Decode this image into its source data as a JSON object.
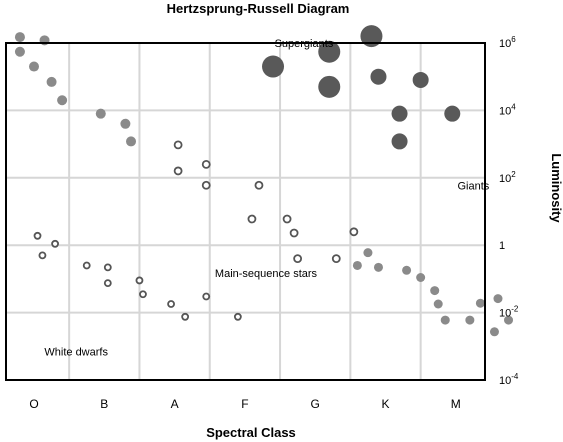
{
  "chart_data": {
    "type": "scatter",
    "title": "Hertzsprung-Russell Diagram",
    "xlabel": "Spectral Class",
    "ylabel": "Luminosity",
    "x_categories": [
      "O",
      "B",
      "A",
      "F",
      "G",
      "K",
      "M"
    ],
    "y_scale": "log",
    "ylim": [
      0.0001,
      1000000
    ],
    "y_ticks": [
      {
        "base": "10",
        "exp": "6",
        "value": 1000000
      },
      {
        "base": "10",
        "exp": "4",
        "value": 10000
      },
      {
        "base": "10",
        "exp": "2",
        "value": 100
      },
      {
        "base": "1",
        "exp": "",
        "value": 1
      },
      {
        "base": "10",
        "exp": "-2",
        "value": 0.01
      },
      {
        "base": "10",
        "exp": "-4",
        "value": 0.0001
      }
    ],
    "grid": true,
    "region_labels": [
      {
        "text": "Supergiants",
        "xpos": 3.84,
        "luminosity": 1000000
      },
      {
        "text": "Giants",
        "xpos": 6.25,
        "luminosity": 60
      },
      {
        "text": "Main-sequence stars",
        "xpos": 3.3,
        "luminosity": 0.15
      },
      {
        "text": "White dwarfs",
        "xpos": 0.6,
        "luminosity": 0.0007
      }
    ],
    "series": [
      {
        "style": "filled",
        "color": "#8a8a8a",
        "points": [
          {
            "x": -0.2,
            "y": 1500000,
            "r": 5
          },
          {
            "x": 0.15,
            "y": 1200000,
            "r": 5
          },
          {
            "x": -0.2,
            "y": 550000,
            "r": 5
          },
          {
            "x": 0.0,
            "y": 200000,
            "r": 5
          },
          {
            "x": 0.25,
            "y": 70000,
            "r": 5
          },
          {
            "x": 0.4,
            "y": 20000,
            "r": 5
          },
          {
            "x": 0.95,
            "y": 8000,
            "r": 5
          },
          {
            "x": 1.3,
            "y": 4000,
            "r": 5
          },
          {
            "x": 1.38,
            "y": 1200,
            "r": 5
          }
        ]
      },
      {
        "style": "filled",
        "color": "#595959",
        "points": [
          {
            "x": 4.8,
            "y": 1600000,
            "r": 11
          },
          {
            "x": 4.2,
            "y": 550000,
            "r": 11
          },
          {
            "x": 3.4,
            "y": 200000,
            "r": 11
          },
          {
            "x": 4.2,
            "y": 50000,
            "r": 11
          },
          {
            "x": 4.9,
            "y": 100000,
            "r": 8
          },
          {
            "x": 5.5,
            "y": 80000,
            "r": 8
          },
          {
            "x": 5.2,
            "y": 8000,
            "r": 8
          },
          {
            "x": 5.95,
            "y": 8000,
            "r": 8
          },
          {
            "x": 5.2,
            "y": 1200,
            "r": 8
          }
        ]
      },
      {
        "style": "ring",
        "color": "#555555",
        "points": [
          {
            "x": 2.05,
            "y": 950,
            "r": 3.5
          },
          {
            "x": 2.05,
            "y": 160,
            "r": 3.5
          },
          {
            "x": 2.45,
            "y": 250,
            "r": 3.5
          },
          {
            "x": 2.45,
            "y": 60,
            "r": 3.5
          },
          {
            "x": 3.2,
            "y": 60,
            "r": 3.5
          },
          {
            "x": 3.1,
            "y": 6,
            "r": 3.5
          },
          {
            "x": 3.6,
            "y": 6,
            "r": 3.5
          },
          {
            "x": 3.7,
            "y": 2.3,
            "r": 3.5
          },
          {
            "x": 4.55,
            "y": 2.5,
            "r": 3.5
          },
          {
            "x": 3.75,
            "y": 0.4,
            "r": 3.5
          },
          {
            "x": 4.3,
            "y": 0.4,
            "r": 3.5
          },
          {
            "x": 0.05,
            "y": 1.9,
            "r": 3
          },
          {
            "x": 0.3,
            "y": 1.1,
            "r": 3
          },
          {
            "x": 0.12,
            "y": 0.5,
            "r": 3
          },
          {
            "x": 0.75,
            "y": 0.25,
            "r": 3
          },
          {
            "x": 1.05,
            "y": 0.22,
            "r": 3
          },
          {
            "x": 1.05,
            "y": 0.075,
            "r": 3
          },
          {
            "x": 1.5,
            "y": 0.09,
            "r": 3
          },
          {
            "x": 1.55,
            "y": 0.035,
            "r": 3
          },
          {
            "x": 1.95,
            "y": 0.018,
            "r": 3
          },
          {
            "x": 2.45,
            "y": 0.03,
            "r": 3
          },
          {
            "x": 2.15,
            "y": 0.0075,
            "r": 3
          },
          {
            "x": 2.9,
            "y": 0.0075,
            "r": 3
          }
        ]
      },
      {
        "style": "filled",
        "color": "#8a8a8a",
        "points": [
          {
            "x": 4.75,
            "y": 0.6,
            "r": 4.5
          },
          {
            "x": 4.6,
            "y": 0.25,
            "r": 4.5
          },
          {
            "x": 4.9,
            "y": 0.22,
            "r": 4.5
          },
          {
            "x": 5.3,
            "y": 0.18,
            "r": 4.5
          },
          {
            "x": 5.5,
            "y": 0.11,
            "r": 4.5
          },
          {
            "x": 5.7,
            "y": 0.045,
            "r": 4.5
          },
          {
            "x": 5.75,
            "y": 0.018,
            "r": 4.5
          },
          {
            "x": 5.85,
            "y": 0.006,
            "r": 4.5
          },
          {
            "x": 6.2,
            "y": 0.006,
            "r": 4.5
          },
          {
            "x": 6.35,
            "y": 0.019,
            "r": 4.5
          },
          {
            "x": 6.6,
            "y": 0.026,
            "r": 4.5
          },
          {
            "x": 6.55,
            "y": 0.0027,
            "r": 4.5
          },
          {
            "x": 6.75,
            "y": 0.006,
            "r": 4.5
          }
        ]
      }
    ]
  }
}
